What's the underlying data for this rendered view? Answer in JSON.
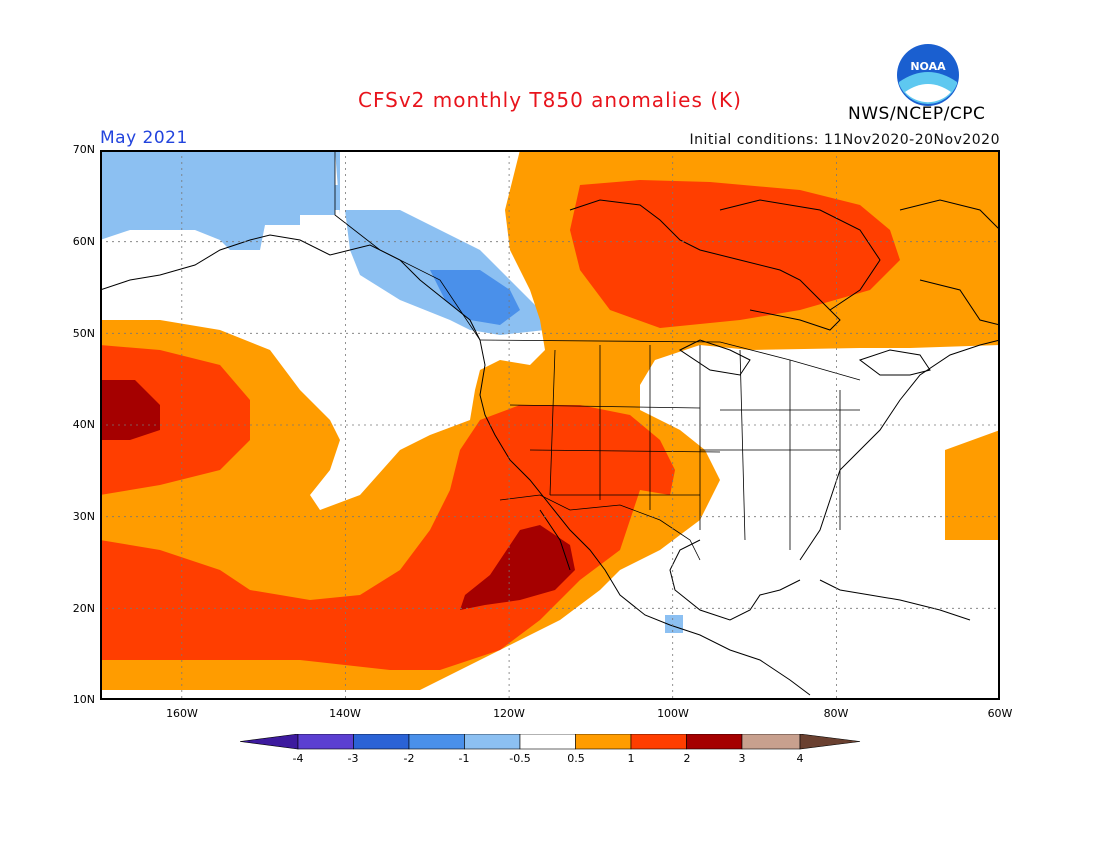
{
  "header": {
    "title": "CFSv2 monthly T850 anomalies (K)",
    "agency": "NWS/NCEP/CPC",
    "valid_month": "May 2021",
    "initial_conditions": "Initial conditions: 11Nov2020-20Nov2020",
    "logo_text": "NOAA"
  },
  "map": {
    "lon_range": [
      -170,
      -60
    ],
    "lat_range": [
      10,
      70
    ],
    "lat_labels": [
      "70N",
      "60N",
      "50N",
      "40N",
      "30N",
      "20N",
      "10N"
    ],
    "lon_labels": [
      "160W",
      "140W",
      "120W",
      "100W",
      "80W",
      "60W"
    ],
    "grid": true
  },
  "colorbar": {
    "labels": [
      "-4",
      "-3",
      "-2",
      "-1",
      "-0.5",
      "0.5",
      "1",
      "2",
      "3",
      "4"
    ],
    "colors": [
      "#3d1a9e",
      "#5b3fd1",
      "#2b63d6",
      "#4a90ea",
      "#8cc0f2",
      "#ffffff",
      "#ff9c00",
      "#ff3e00",
      "#a50000",
      "#c8a08e",
      "#6a4030"
    ]
  }
}
